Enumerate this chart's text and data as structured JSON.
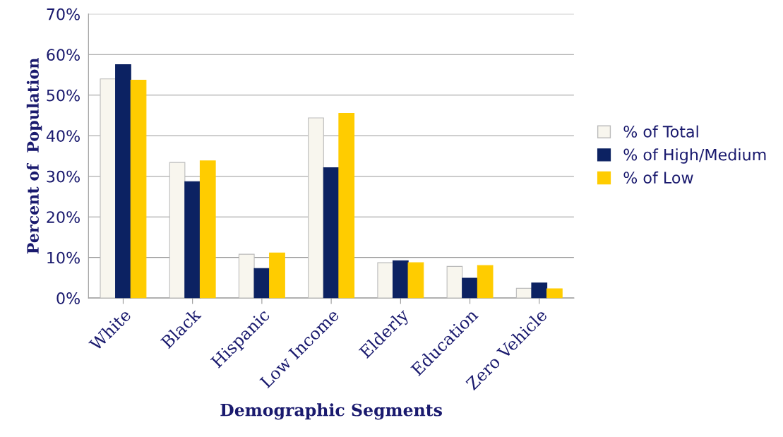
{
  "chart_data": {
    "type": "bar",
    "xlabel": "Demographic Segments",
    "ylabel": "Percent of  Population",
    "categories": [
      "White",
      "Black",
      "Hispanic",
      "Low Income",
      "Elderly",
      "Education",
      "Zero Vehicle"
    ],
    "series": [
      {
        "name": "% of Total",
        "color": "#f8f6ee",
        "values": [
          54.0,
          33.4,
          10.8,
          44.4,
          8.7,
          7.8,
          2.4
        ]
      },
      {
        "name": "% of High/Medium",
        "color": "#0c2262",
        "values": [
          57.5,
          28.7,
          7.3,
          32.1,
          9.2,
          4.9,
          3.7
        ]
      },
      {
        "name": "% of Low",
        "color": "#ffcc00",
        "values": [
          53.7,
          33.8,
          11.1,
          45.5,
          8.7,
          8.0,
          2.3
        ]
      }
    ],
    "ylim": [
      0,
      70
    ],
    "yticks": [
      {
        "value": 0,
        "label": "0%"
      },
      {
        "value": 10,
        "label": "10%"
      },
      {
        "value": 20,
        "label": "20%"
      },
      {
        "value": 30,
        "label": "30%"
      },
      {
        "value": 40,
        "label": "40%"
      },
      {
        "value": 50,
        "label": "50%"
      },
      {
        "value": 60,
        "label": "60%"
      },
      {
        "value": 70,
        "label": "70%"
      }
    ],
    "grid": "y",
    "legend": "right"
  }
}
